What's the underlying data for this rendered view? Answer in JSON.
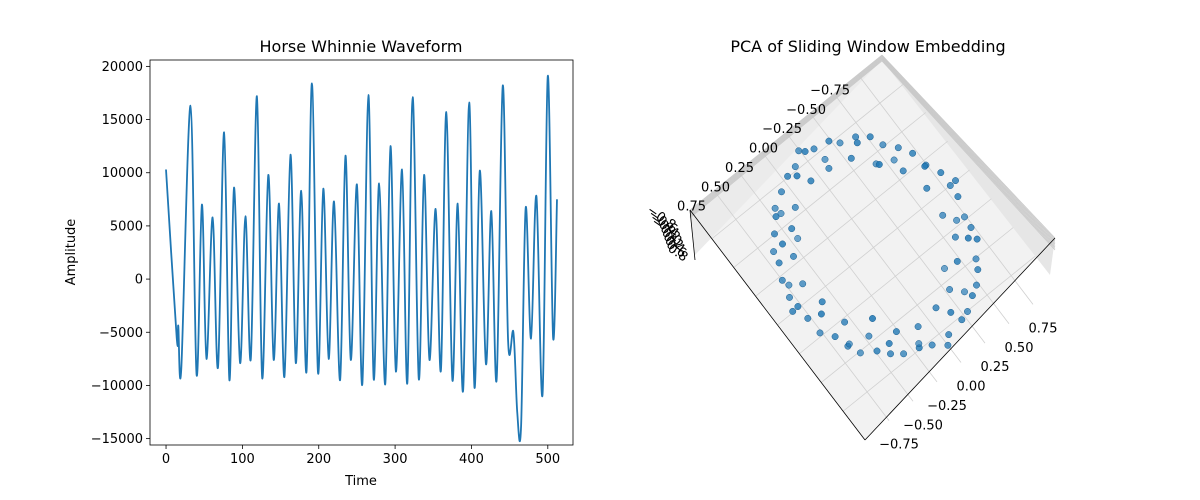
{
  "chart_data": [
    {
      "type": "line",
      "title": "Horse Whinnie Waveform",
      "xlabel": "Time",
      "ylabel": "Amplitude",
      "xlim": [
        -21,
        533
      ],
      "ylim": [
        -15600,
        20600
      ],
      "xticks": [
        0,
        100,
        200,
        300,
        400,
        500
      ],
      "xtick_labels": [
        "0",
        "100",
        "200",
        "300",
        "400",
        "500"
      ],
      "yticks": [
        -15000,
        -10000,
        -5000,
        0,
        5000,
        10000,
        15000,
        20000
      ],
      "ytick_labels": [
        "−15000",
        "−10000",
        "−5000",
        "0",
        "5000",
        "10000",
        "15000",
        "20000"
      ],
      "color": "#1f77b4",
      "series": [
        {
          "x": [
            0,
            14,
            16,
            20,
            32,
            40,
            47,
            53,
            61,
            68,
            76,
            83,
            89,
            97,
            104,
            111,
            119,
            126,
            134,
            141,
            148,
            155,
            163,
            170,
            177,
            184,
            191,
            199,
            206,
            213,
            220,
            228,
            235,
            242,
            250,
            257,
            265,
            272,
            279,
            287,
            294,
            301,
            309,
            316,
            323,
            331,
            338,
            345,
            353,
            360,
            367,
            375,
            382,
            389,
            397,
            404,
            411,
            419,
            426,
            433,
            441,
            448,
            455,
            460,
            465,
            471,
            478,
            485,
            493,
            500,
            507,
            512
          ],
          "y": [
            10300,
            -5500,
            -4400,
            -8400,
            16300,
            -9000,
            7000,
            -7500,
            5800,
            -8300,
            13800,
            -9500,
            8600,
            -7900,
            5900,
            -7500,
            17200,
            -9300,
            9800,
            -7600,
            7100,
            -9200,
            11700,
            -7900,
            8300,
            -8700,
            18400,
            -8800,
            8500,
            -7500,
            7300,
            -9500,
            11600,
            -7600,
            8900,
            -9900,
            17300,
            -9400,
            9000,
            -9900,
            12500,
            -8700,
            10300,
            -9800,
            17100,
            -9400,
            9800,
            -7600,
            6600,
            -8600,
            15700,
            -9500,
            7100,
            -10500,
            16600,
            -10200,
            10200,
            -8000,
            6400,
            -9500,
            18200,
            -5800,
            -5000,
            -12600,
            -13800,
            6700,
            -5600,
            7800,
            -10900,
            19100,
            -5500,
            7500
          ]
        }
      ]
    },
    {
      "type": "scatter",
      "title": "PCA of Sliding Window Embedding",
      "projection": "3d",
      "x_tick_labels": [
        "−0.75",
        "−0.50",
        "−0.25",
        "0.00",
        "0.25",
        "0.50",
        "0.75"
      ],
      "y_tick_labels": [
        "−0.75",
        "−0.50",
        "−0.25",
        "0.00",
        "0.25",
        "0.50",
        "0.75"
      ],
      "z_tick_labels": [
        "−0.8",
        "−0.6",
        "−0.4",
        "−0.2",
        "0.0",
        "0.2",
        "0.4",
        "0.6",
        "0.8"
      ],
      "color": "#1f77b4",
      "points": [
        [
          0.8,
          0.05,
          0.1
        ],
        [
          0.78,
          0.2,
          0.2
        ],
        [
          0.75,
          0.3,
          -0.1
        ],
        [
          0.7,
          0.38,
          0.3
        ],
        [
          0.65,
          0.48,
          0.0
        ],
        [
          0.58,
          0.55,
          0.2
        ],
        [
          0.5,
          0.62,
          -0.2
        ],
        [
          0.42,
          0.68,
          0.4
        ],
        [
          0.32,
          0.72,
          0.1
        ],
        [
          0.22,
          0.76,
          -0.3
        ],
        [
          0.1,
          0.78,
          0.2
        ],
        [
          0.0,
          0.8,
          0.0
        ],
        [
          -0.1,
          0.78,
          0.3
        ],
        [
          -0.22,
          0.75,
          -0.1
        ],
        [
          -0.33,
          0.7,
          0.2
        ],
        [
          -0.43,
          0.65,
          0.0
        ],
        [
          -0.52,
          0.58,
          -0.2
        ],
        [
          -0.6,
          0.5,
          0.3
        ],
        [
          -0.67,
          0.42,
          0.1
        ],
        [
          -0.72,
          0.32,
          -0.3
        ],
        [
          -0.76,
          0.22,
          0.2
        ],
        [
          -0.79,
          0.1,
          0.0
        ],
        [
          -0.8,
          0.0,
          0.4
        ],
        [
          -0.78,
          -0.1,
          -0.1
        ],
        [
          -0.75,
          -0.22,
          0.2
        ],
        [
          -0.7,
          -0.32,
          0.0
        ],
        [
          -0.65,
          -0.42,
          -0.3
        ],
        [
          -0.58,
          -0.5,
          0.3
        ],
        [
          -0.5,
          -0.58,
          0.1
        ],
        [
          -0.42,
          -0.65,
          -0.2
        ],
        [
          -0.32,
          -0.7,
          0.2
        ],
        [
          -0.22,
          -0.75,
          0.0
        ],
        [
          -0.1,
          -0.78,
          -0.1
        ],
        [
          0.0,
          -0.8,
          0.3
        ],
        [
          0.1,
          -0.78,
          0.1
        ],
        [
          0.22,
          -0.75,
          -0.2
        ],
        [
          0.32,
          -0.7,
          0.2
        ],
        [
          0.42,
          -0.65,
          0.0
        ],
        [
          0.5,
          -0.58,
          -0.3
        ],
        [
          0.58,
          -0.5,
          0.2
        ],
        [
          0.65,
          -0.42,
          0.1
        ],
        [
          0.7,
          -0.32,
          -0.1
        ],
        [
          0.75,
          -0.22,
          0.3
        ],
        [
          0.78,
          -0.1,
          0.0
        ],
        [
          0.6,
          0.1,
          0.1
        ],
        [
          0.55,
          0.3,
          -0.2
        ],
        [
          0.45,
          0.45,
          0.3
        ],
        [
          0.3,
          0.58,
          0.0
        ],
        [
          0.12,
          0.62,
          -0.2
        ],
        [
          -0.08,
          0.62,
          0.2
        ],
        [
          -0.28,
          0.56,
          0.1
        ],
        [
          -0.45,
          0.45,
          -0.3
        ],
        [
          -0.57,
          0.28,
          0.2
        ],
        [
          -0.62,
          0.1,
          0.0
        ],
        [
          -0.62,
          -0.1,
          0.3
        ],
        [
          -0.56,
          -0.3,
          -0.1
        ],
        [
          -0.45,
          -0.45,
          0.2
        ],
        [
          -0.3,
          -0.56,
          0.0
        ],
        [
          -0.12,
          -0.62,
          -0.2
        ],
        [
          0.08,
          -0.62,
          0.3
        ],
        [
          0.28,
          -0.56,
          0.1
        ],
        [
          0.45,
          -0.45,
          -0.2
        ],
        [
          0.56,
          -0.28,
          0.2
        ],
        [
          0.62,
          -0.1,
          0.0
        ],
        [
          0.7,
          0.15,
          0.4
        ],
        [
          0.62,
          0.4,
          -0.4
        ],
        [
          0.38,
          0.62,
          0.5
        ],
        [
          0.2,
          0.7,
          -0.4
        ],
        [
          -0.2,
          0.7,
          0.4
        ],
        [
          -0.4,
          0.6,
          -0.5
        ],
        [
          -0.62,
          0.38,
          0.4
        ],
        [
          -0.7,
          0.15,
          -0.4
        ],
        [
          -0.7,
          -0.18,
          0.5
        ],
        [
          -0.6,
          -0.4,
          -0.4
        ],
        [
          -0.4,
          -0.6,
          0.4
        ],
        [
          -0.18,
          -0.7,
          -0.4
        ],
        [
          0.15,
          -0.7,
          0.5
        ],
        [
          0.4,
          -0.6,
          -0.4
        ],
        [
          0.6,
          -0.4,
          0.4
        ],
        [
          0.7,
          -0.15,
          -0.4
        ],
        [
          0.85,
          0.0,
          0.0
        ],
        [
          0.0,
          0.85,
          0.1
        ],
        [
          -0.85,
          0.0,
          -0.1
        ],
        [
          0.0,
          -0.85,
          0.2
        ],
        [
          0.4,
          0.4,
          -0.6
        ],
        [
          -0.4,
          0.4,
          0.6
        ],
        [
          -0.4,
          -0.4,
          -0.6
        ],
        [
          0.4,
          -0.4,
          0.6
        ]
      ]
    }
  ]
}
